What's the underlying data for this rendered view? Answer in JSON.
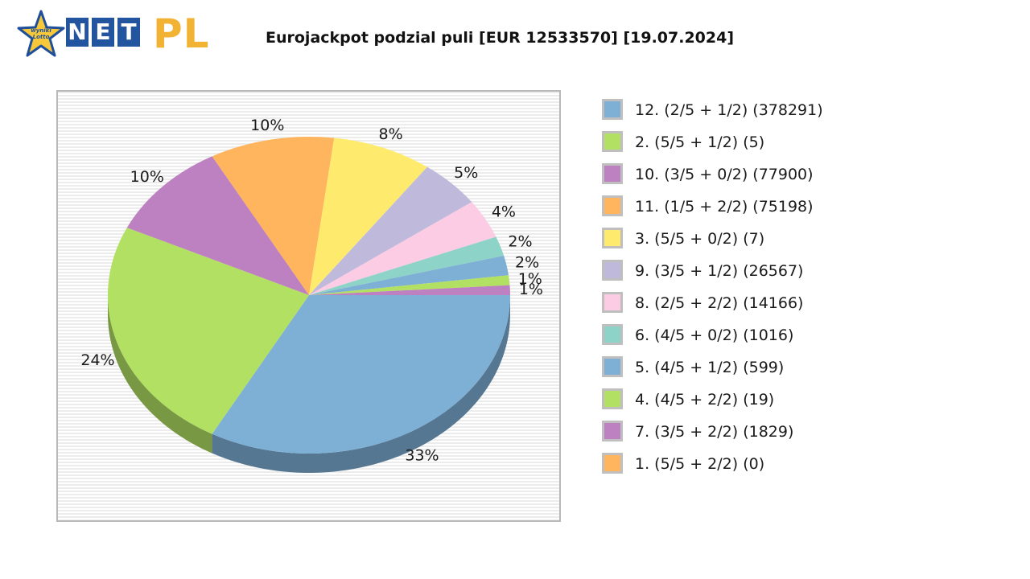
{
  "logo": {
    "star_text_1": "wyniki",
    "star_text_2": "Lotto",
    "letters": [
      "N",
      "E",
      "T"
    ],
    "pl": "PL"
  },
  "chart_data": {
    "type": "pie",
    "title": "Eurojackpot podzial puli [EUR 12533570] [19.07.2024]",
    "slices": [
      {
        "label": "12. (2/5 + 1/2) (378291)",
        "percent": 33,
        "color": "#7eafd5"
      },
      {
        "label": "2. (5/5 + 1/2) (5)",
        "percent": 24,
        "color": "#b2e062"
      },
      {
        "label": "10. (3/5 + 0/2) (77900)",
        "percent": 10,
        "color": "#bd80c0"
      },
      {
        "label": "11. (1/5 + 2/2) (75198)",
        "percent": 10,
        "color": "#feb55d"
      },
      {
        "label": "3. (5/5 + 0/2) (7)",
        "percent": 8,
        "color": "#feeb6e"
      },
      {
        "label": "9. (3/5 + 1/2) (26567)",
        "percent": 5,
        "color": "#bfbadb"
      },
      {
        "label": "8. (2/5 + 2/2) (14166)",
        "percent": 4,
        "color": "#fcccE5"
      },
      {
        "label": "6. (4/5 + 0/2) (1016)",
        "percent": 2,
        "color": "#8ed3c7"
      },
      {
        "label": "5. (4/5 + 1/2) (599)",
        "percent": 2,
        "color": "#7eafd5"
      },
      {
        "label": "4. (4/5 + 2/2) (19)",
        "percent": 1,
        "color": "#b2e062"
      },
      {
        "label": "7. (3/5 + 2/2) (1829)",
        "percent": 1,
        "color": "#bd80c0"
      },
      {
        "label": "1. (5/5 + 2/2) (0)",
        "percent": 0,
        "color": "#feb55d"
      }
    ],
    "legend_position": "right",
    "percent_labels": [
      "33%",
      "24%",
      "10%",
      "10%",
      "8%",
      "5%",
      "4%",
      "2%",
      "2%",
      "1%",
      "1%"
    ]
  }
}
